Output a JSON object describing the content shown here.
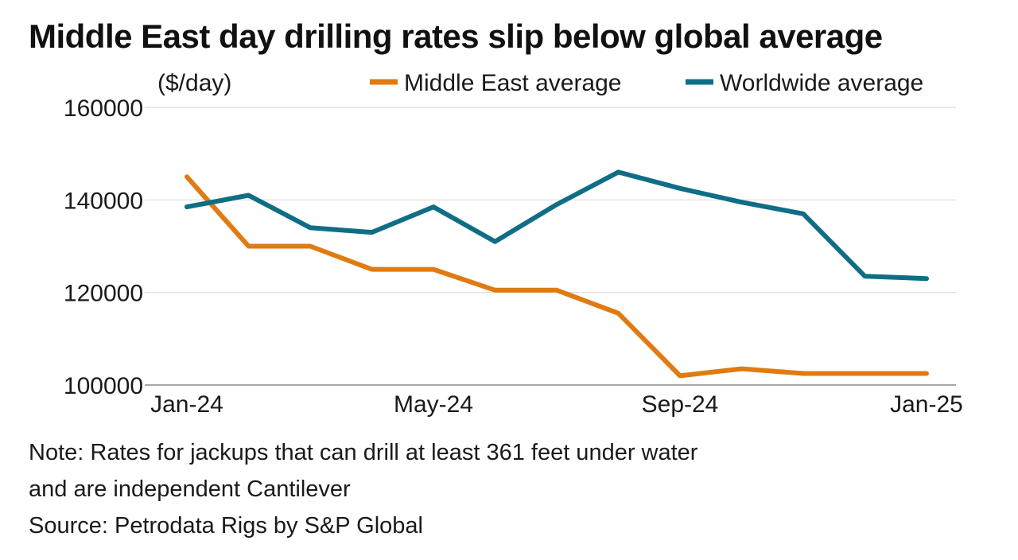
{
  "chart_data": {
    "type": "line",
    "title": "Middle East day drilling rates slip below global average",
    "ylabel": "($/day)",
    "xlabel": "",
    "ylim": [
      100000,
      160000
    ],
    "yticks": [
      "160000",
      "140000",
      "120000",
      "100000"
    ],
    "ytick_values": [
      160000,
      140000,
      120000,
      100000
    ],
    "x": [
      "Jan-24",
      "Feb-24",
      "Mar-24",
      "Apr-24",
      "May-24",
      "Jun-24",
      "Jul-24",
      "Aug-24",
      "Sep-24",
      "Oct-24",
      "Nov-24",
      "Dec-24",
      "Jan-25"
    ],
    "xtick_labels": [
      {
        "label": "Jan-24",
        "index": 0
      },
      {
        "label": "May-24",
        "index": 4
      },
      {
        "label": "Sep-24",
        "index": 8
      },
      {
        "label": "Jan-25",
        "index": 12
      }
    ],
    "series": [
      {
        "name": "Middle East average",
        "color": "#e07b12",
        "values": [
          145000,
          130000,
          130000,
          125000,
          125000,
          120500,
          120500,
          115500,
          102000,
          103500,
          102500,
          102500,
          102500
        ]
      },
      {
        "name": "Worldwide average",
        "color": "#0f6e86",
        "values": [
          138500,
          141000,
          134000,
          133000,
          138500,
          131000,
          139000,
          146000,
          142500,
          139500,
          137000,
          123500,
          123000
        ]
      }
    ],
    "grid": true,
    "legend_position": "top"
  },
  "footer": {
    "note_line1": "Note: Rates for jackups that can drill at least 361 feet under water",
    "note_line2": "and are independent Cantilever",
    "source": "Source: Petrodata Rigs by S&P Global"
  }
}
